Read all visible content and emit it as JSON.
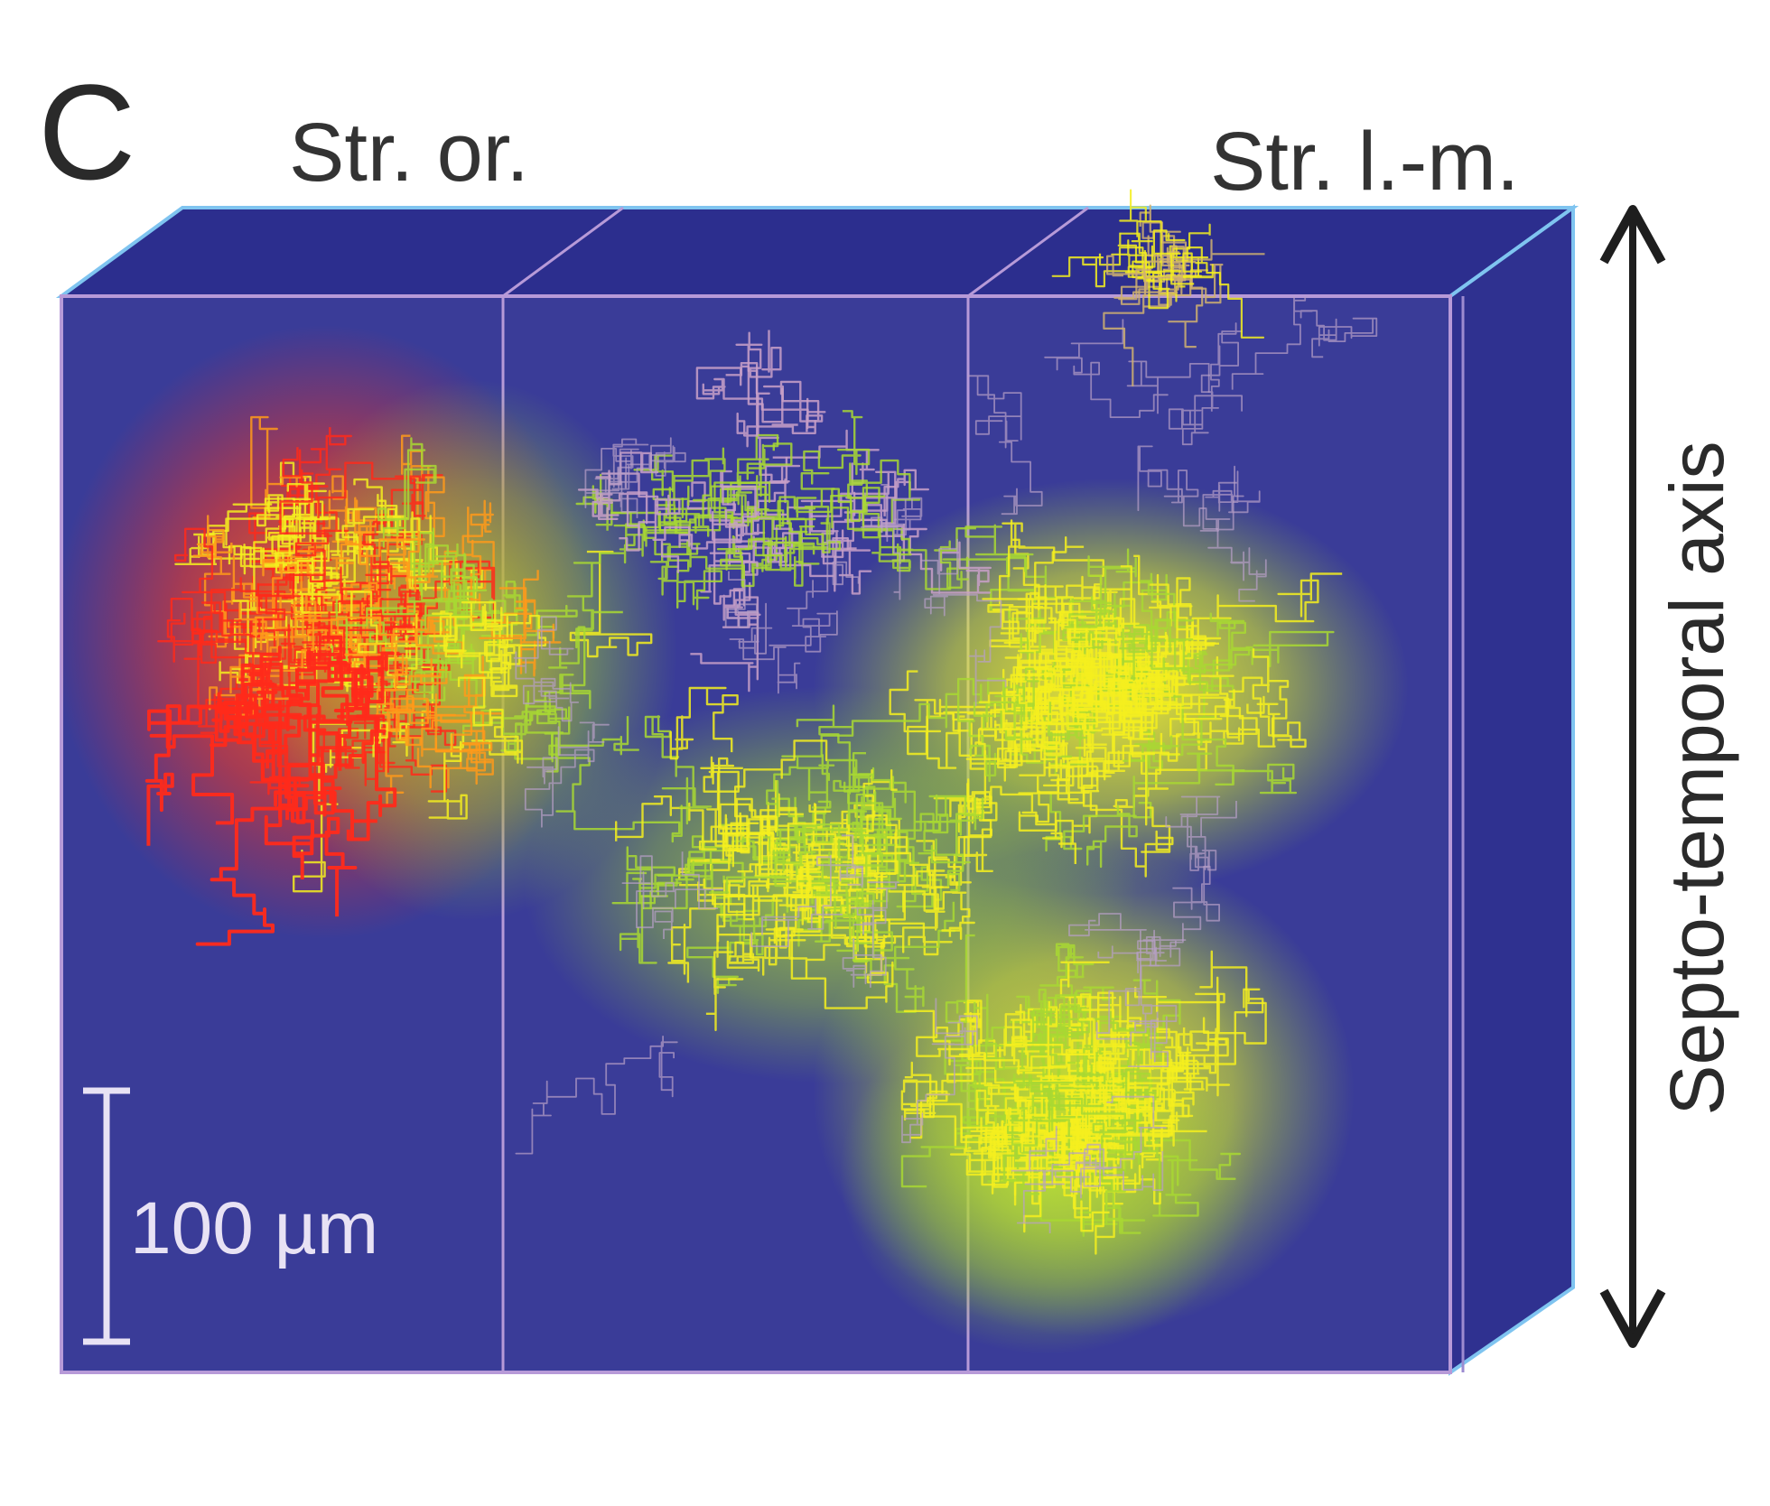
{
  "figure": {
    "panel_letter": "C",
    "labels": {
      "stratum_oriens": "Str. or.",
      "stratum_lacunosum_moleculare": "Str. l.-m."
    },
    "axis_label": "Septo-temporal axis",
    "scale_bar": "100 µm",
    "colors": {
      "volume_face": "#3a3c98",
      "volume_side": "#2f3190",
      "volume_top": "#2c2e8e",
      "edge": "#b79ad8",
      "axon_red": "#ff2a1a",
      "axon_orange": "#ff9a1a",
      "axon_yellow": "#f4ef1e",
      "axon_green": "#a8d832"
    }
  }
}
